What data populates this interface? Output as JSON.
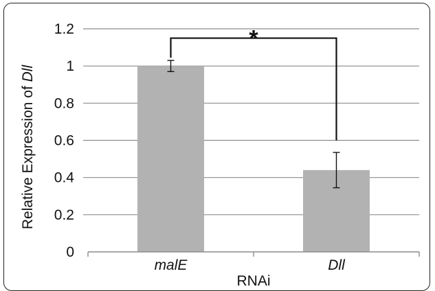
{
  "chart_data": {
    "type": "bar",
    "categories": [
      "malE",
      "Dll"
    ],
    "values": [
      1.0,
      0.44
    ],
    "error_bars": [
      {
        "low": 0.97,
        "high": 1.03
      },
      {
        "low": 0.345,
        "high": 0.535
      }
    ],
    "xlabel": "RNAi",
    "ylabel": "Relative Expression of Dll",
    "ylabel_prefix": "Relative Expression of ",
    "ylabel_italic": "Dll",
    "ylim": [
      0,
      1.2
    ],
    "yticks": [
      "0",
      "0.2",
      "0.4",
      "0.6",
      "0.8",
      "1",
      "1.2"
    ],
    "grid": true,
    "legend": "none",
    "significance": {
      "between": [
        "malE",
        "Dll"
      ],
      "label": "*",
      "bracket_y": 1.15
    },
    "bar_color": "#b2b2b2",
    "grid_color": "#8c8c8c"
  }
}
